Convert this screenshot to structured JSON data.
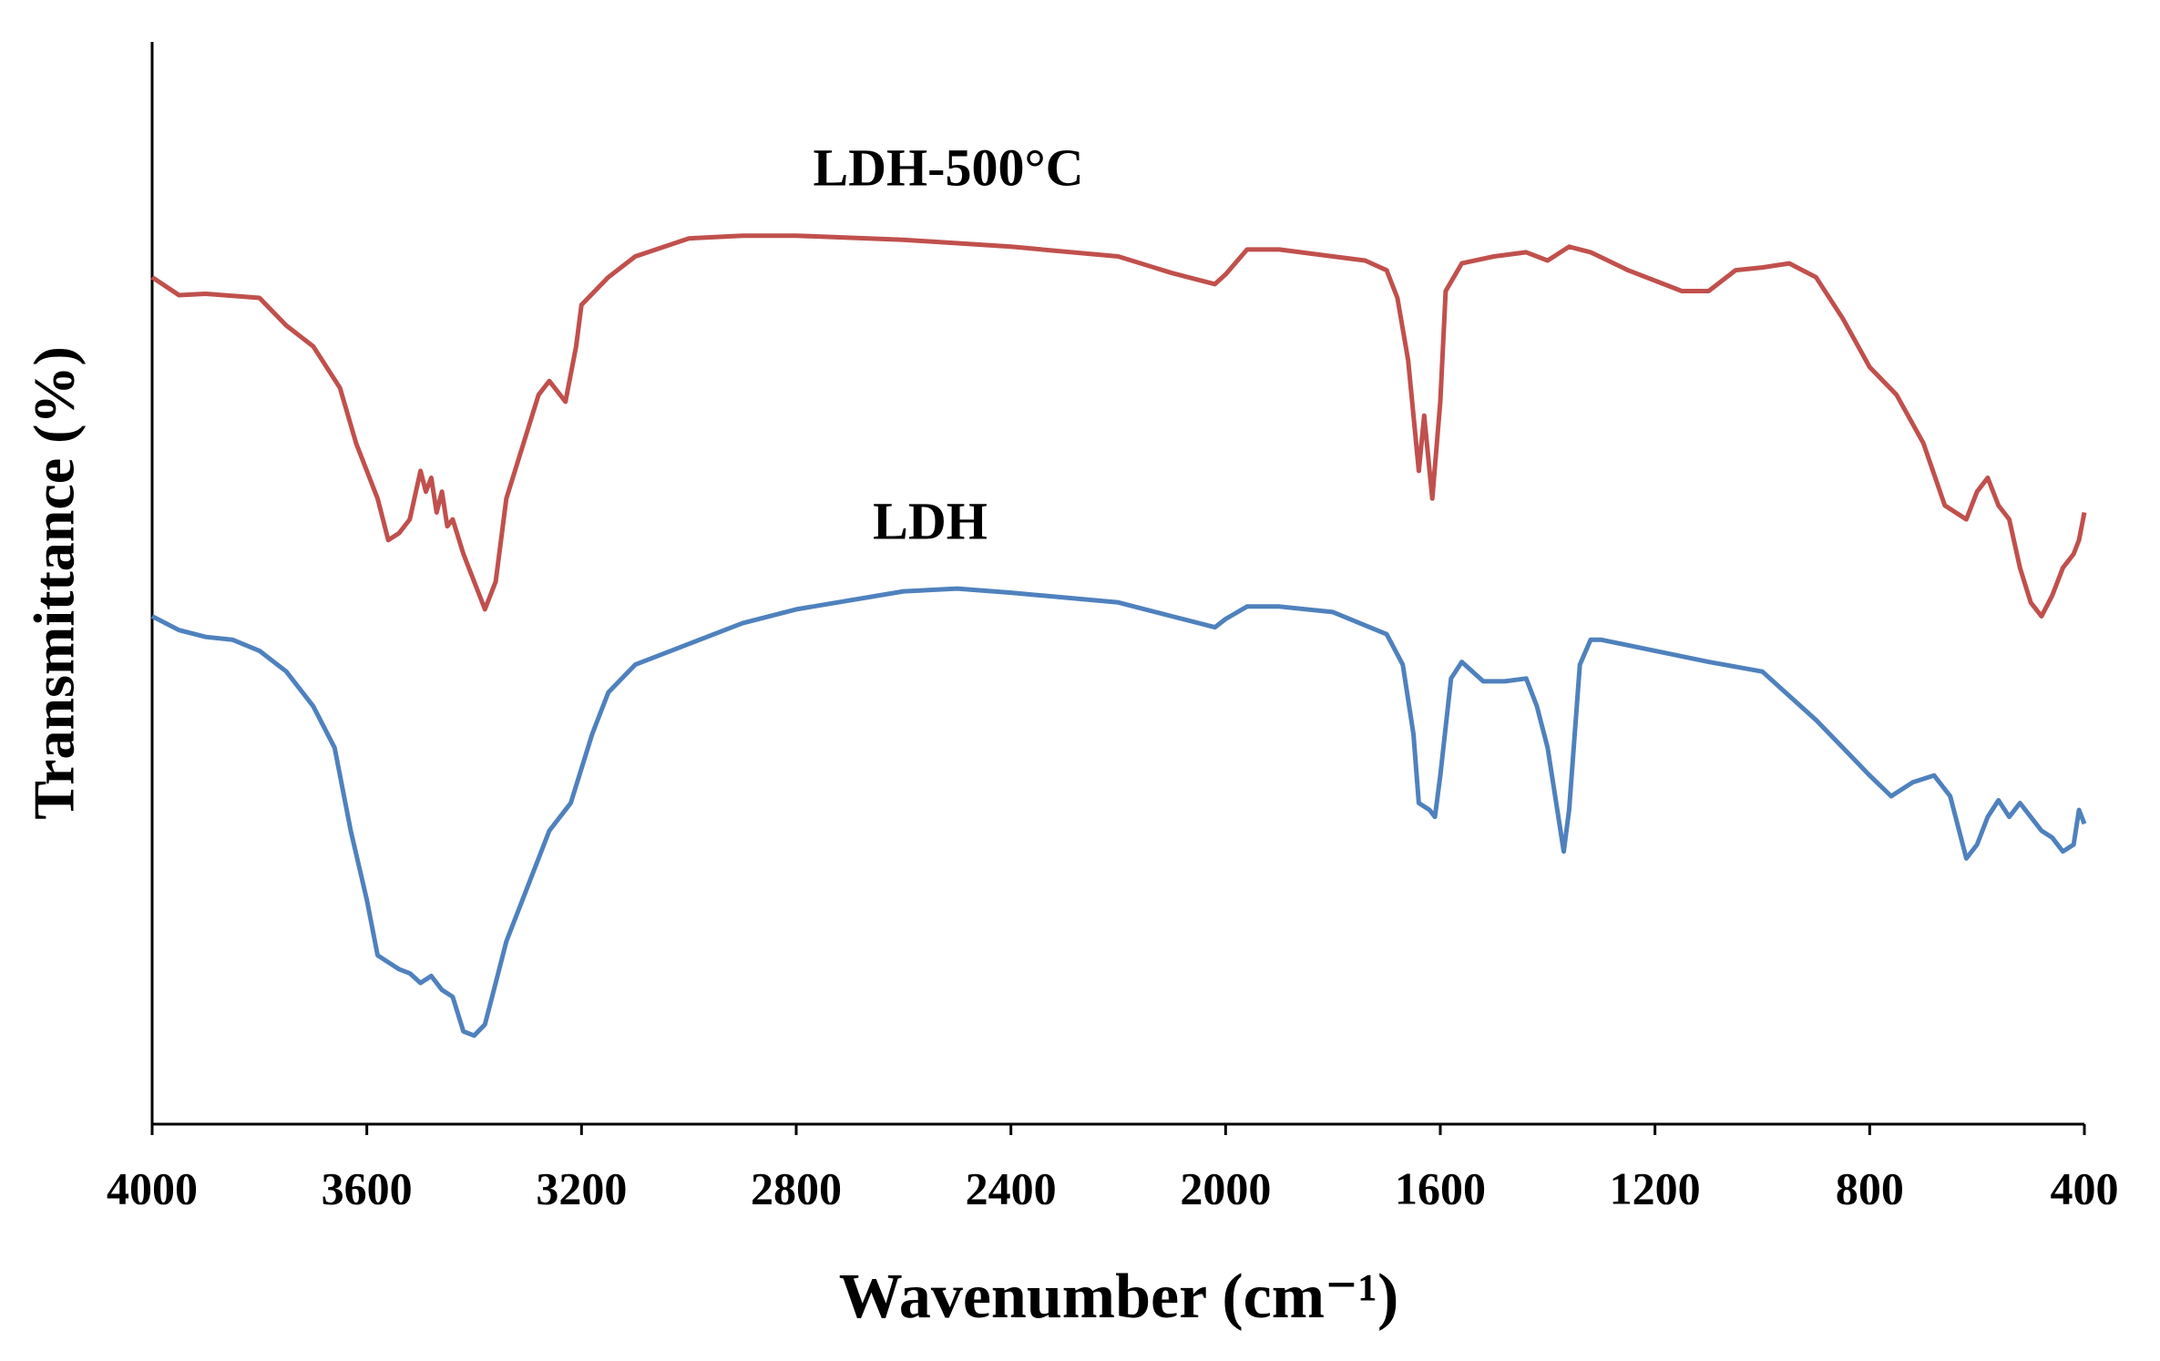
{
  "chart_data": {
    "type": "line",
    "xlabel": "Wavenumber (cm⁻¹)",
    "ylabel": "Transmittance (%)",
    "xlim": [
      4000,
      400
    ],
    "xticks": [
      4000,
      3600,
      3200,
      2800,
      2400,
      2000,
      1600,
      1200,
      800,
      400
    ],
    "ylim": [
      0,
      78.2
    ],
    "series": [
      {
        "name": "LDH-500°C",
        "color": "#c0504d",
        "x": [
          4000,
          3950,
          3900,
          3800,
          3750,
          3700,
          3650,
          3620,
          3580,
          3560,
          3540,
          3520,
          3500,
          3490,
          3480,
          3470,
          3460,
          3450,
          3440,
          3420,
          3400,
          3380,
          3360,
          3340,
          3300,
          3280,
          3260,
          3240,
          3230,
          3210,
          3200,
          3150,
          3100,
          3000,
          2900,
          2800,
          2600,
          2400,
          2200,
          2100,
          2020,
          2000,
          1960,
          1900,
          1800,
          1740,
          1700,
          1680,
          1660,
          1640,
          1630,
          1615,
          1600,
          1590,
          1560,
          1500,
          1440,
          1400,
          1360,
          1320,
          1250,
          1150,
          1100,
          1050,
          1000,
          950,
          900,
          850,
          800,
          750,
          700,
          660,
          620,
          600,
          580,
          560,
          540,
          520,
          500,
          480,
          460,
          440,
          420,
          410,
          400
        ],
        "values": [
          61.2,
          59.9,
          60.0,
          59.7,
          57.7,
          56.2,
          53.2,
          49.2,
          45.2,
          42.2,
          42.7,
          43.7,
          47.2,
          45.7,
          46.7,
          44.2,
          45.7,
          43.2,
          43.7,
          41.2,
          39.2,
          37.2,
          39.2,
          45.2,
          50.2,
          52.7,
          53.7,
          52.7,
          52.2,
          56.2,
          59.2,
          61.2,
          62.7,
          64.0,
          64.2,
          64.2,
          63.9,
          63.4,
          62.7,
          61.5,
          60.7,
          61.4,
          63.2,
          63.2,
          62.7,
          62.4,
          61.7,
          59.7,
          55.2,
          47.2,
          51.2,
          45.2,
          52.2,
          60.2,
          62.2,
          62.7,
          63.0,
          62.4,
          63.4,
          63.0,
          61.7,
          60.2,
          60.2,
          61.7,
          61.9,
          62.2,
          61.2,
          58.2,
          54.7,
          52.7,
          49.2,
          44.7,
          43.7,
          45.7,
          46.7,
          44.7,
          43.7,
          40.2,
          37.7,
          36.7,
          38.2,
          40.2,
          41.2,
          42.2,
          44.2
        ]
      },
      {
        "name": "LDH",
        "color": "#4f81bd",
        "x": [
          4000,
          3950,
          3900,
          3850,
          3800,
          3750,
          3700,
          3660,
          3630,
          3600,
          3580,
          3560,
          3540,
          3520,
          3500,
          3480,
          3460,
          3440,
          3420,
          3400,
          3380,
          3360,
          3340,
          3300,
          3260,
          3220,
          3180,
          3150,
          3100,
          3000,
          2900,
          2800,
          2600,
          2500,
          2400,
          2200,
          2100,
          2020,
          2000,
          1960,
          1900,
          1800,
          1750,
          1700,
          1670,
          1650,
          1640,
          1620,
          1610,
          1600,
          1580,
          1560,
          1520,
          1480,
          1440,
          1420,
          1400,
          1380,
          1370,
          1360,
          1340,
          1320,
          1300,
          1200,
          1100,
          1000,
          900,
          850,
          800,
          760,
          720,
          680,
          650,
          620,
          600,
          580,
          560,
          540,
          520,
          500,
          480,
          460,
          440,
          420,
          410,
          400
        ],
        "values": [
          36.7,
          35.7,
          35.2,
          35.0,
          34.2,
          32.7,
          30.2,
          27.2,
          21.2,
          16.2,
          12.2,
          11.7,
          11.2,
          10.9,
          10.2,
          10.7,
          9.7,
          9.2,
          6.7,
          6.4,
          7.2,
          10.2,
          13.2,
          17.2,
          21.2,
          23.2,
          28.2,
          31.2,
          33.2,
          34.7,
          36.2,
          37.2,
          38.5,
          38.7,
          38.4,
          37.7,
          36.7,
          35.9,
          36.5,
          37.4,
          37.4,
          37.0,
          36.2,
          35.4,
          33.2,
          28.2,
          23.2,
          22.7,
          22.2,
          25.2,
          32.2,
          33.4,
          32.0,
          32.0,
          32.2,
          30.2,
          27.2,
          22.2,
          19.7,
          22.7,
          33.2,
          35.0,
          35.0,
          34.2,
          33.4,
          32.7,
          29.2,
          27.2,
          25.2,
          23.7,
          24.7,
          25.2,
          23.7,
          19.2,
          20.2,
          22.2,
          23.4,
          22.2,
          23.2,
          22.2,
          21.2,
          20.7,
          19.7,
          20.2,
          22.7,
          21.7
        ]
      }
    ]
  }
}
